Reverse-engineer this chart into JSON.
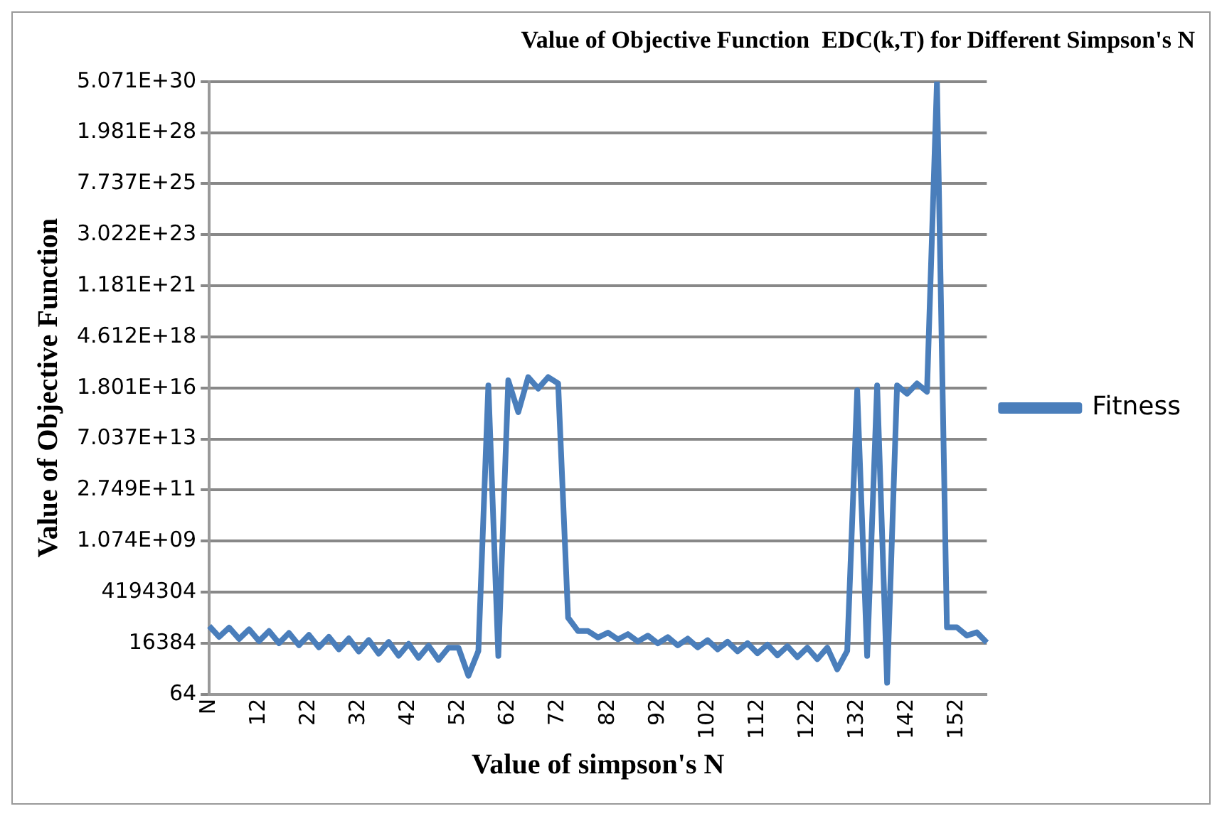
{
  "chart_data": {
    "type": "line",
    "title": "Value of Objective Function  EDC(k,T) for Different Simpson's N",
    "xlabel": "Value of simpson's N",
    "ylabel": "Value of Objective Function",
    "categories": [
      "N",
      null,
      null,
      null,
      null,
      "12",
      null,
      null,
      null,
      null,
      "22",
      null,
      null,
      null,
      null,
      "32",
      null,
      null,
      null,
      null,
      "42",
      null,
      null,
      null,
      null,
      "52",
      null,
      null,
      null,
      null,
      "62",
      null,
      null,
      null,
      null,
      "72",
      null,
      null,
      null,
      null,
      "82",
      null,
      null,
      null,
      null,
      "92",
      null,
      null,
      null,
      null,
      "102",
      null,
      null,
      null,
      null,
      "112",
      null,
      null,
      null,
      null,
      "122",
      null,
      null,
      null,
      null,
      "132",
      null,
      null,
      null,
      null,
      "142",
      null,
      null,
      null,
      null,
      "152",
      null,
      null,
      null
    ],
    "series": [
      {
        "name": "Fitness",
        "color": "#4a7ebb",
        "values": [
          106000,
          32800,
          89500,
          26000,
          73700,
          20700,
          61100,
          16400,
          49700,
          13100,
          40300,
          10500,
          32768,
          8400,
          27700,
          6650,
          23200,
          5290,
          18800,
          4210,
          15300,
          3330,
          12400,
          2680,
          10100,
          10100,
          478,
          7130,
          2.38e+16,
          4100,
          4.1e+16,
          1290000000000000.0,
          5.85e+16,
          1.68e+16,
          5.85e+16,
          2.93e+16,
          262000,
          61100,
          61100,
          30600,
          51800,
          24800,
          43800,
          19900,
          37400,
          16000,
          31700,
          12900,
          27000,
          10400,
          22900,
          8400,
          19300,
          6800,
          16400,
          5480,
          14000,
          4390,
          11800,
          3570,
          10100,
          2900,
          10100,
          955,
          7130,
          1.37e+16,
          4100,
          2.38e+16,
          223,
          2.38e+16,
          9600000000000000.0,
          2.93e+16,
          1.19e+16,
          5.0706e+30,
          92700,
          92700,
          37600,
          53200,
          17600
        ]
      }
    ],
    "log": "y",
    "ylim": [
      64,
      5.070602400912918e+30
    ],
    "yticks": [
      {
        "value": 64,
        "label": "64"
      },
      {
        "value": 16384,
        "label": "16384"
      },
      {
        "value": 4194304,
        "label": "4194304"
      },
      {
        "value": 1073741824,
        "label": "1.074E+09"
      },
      {
        "value": 274877906944,
        "label": "2.749E+11"
      },
      {
        "value": 70368744177664,
        "label": "7.037E+13"
      },
      {
        "value": 18014398509481984,
        "label": "1.801E+16"
      },
      {
        "value": 4.611686018427388e+18,
        "label": "4.612E+18"
      },
      {
        "value": 1.1805916207174113e+21,
        "label": "1.181E+21"
      },
      {
        "value": 3.022314549036573e+23,
        "label": "3.022E+23"
      },
      {
        "value": 7.737125245533627e+25,
        "label": "7.737E+25"
      },
      {
        "value": 1.9807040628566084e+28,
        "label": "1.981E+28"
      },
      {
        "value": 5.070602400912918e+30,
        "label": "5.071E+30"
      }
    ],
    "grid": "y",
    "legend": "right",
    "marker": "none",
    "line_style": "solid"
  }
}
